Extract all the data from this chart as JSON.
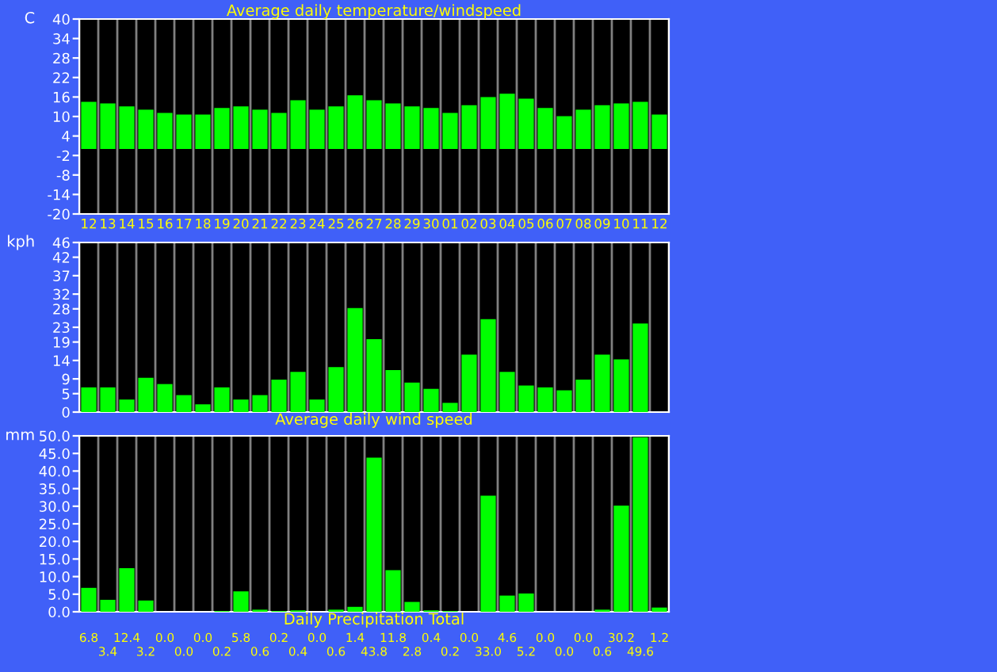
{
  "chart_data": [
    {
      "type": "bar",
      "title": "Average daily temperature/windspeed",
      "ylabel": "C",
      "categories": [
        "12",
        "13",
        "14",
        "15",
        "16",
        "17",
        "18",
        "19",
        "20",
        "21",
        "22",
        "23",
        "24",
        "25",
        "26",
        "27",
        "28",
        "29",
        "30",
        "01",
        "02",
        "03",
        "04",
        "05",
        "06",
        "07",
        "08",
        "09",
        "10",
        "11",
        "12"
      ],
      "series": [
        {
          "color": "#00ff00",
          "values": [
            14.5,
            14.0,
            13.1,
            12.1,
            11.1,
            10.6,
            10.6,
            12.6,
            13.1,
            12.1,
            11.1,
            15.0,
            12.1,
            13.1,
            16.5,
            15.0,
            14.0,
            13.1,
            12.6,
            11.1,
            13.5,
            16.0,
            17.0,
            15.5,
            12.6,
            10.1,
            12.1,
            13.5,
            14.0,
            14.5,
            10.6
          ]
        }
      ],
      "ylim": [
        -20,
        40
      ],
      "yticks": [
        -20,
        -14,
        -8,
        -2,
        4,
        10,
        16,
        22,
        28,
        34,
        40
      ],
      "grid": "x"
    },
    {
      "type": "bar",
      "ylabel": "kph",
      "xlabel": "Average daily wind speed",
      "categories": [
        "12",
        "13",
        "14",
        "15",
        "16",
        "17",
        "18",
        "19",
        "20",
        "21",
        "22",
        "23",
        "24",
        "25",
        "26",
        "27",
        "28",
        "29",
        "30",
        "01",
        "02",
        "03",
        "04",
        "05",
        "06",
        "07",
        "08",
        "09",
        "10",
        "11",
        "12"
      ],
      "series": [
        {
          "color": "#00ff00",
          "values": [
            6.7,
            6.7,
            3.4,
            9.3,
            7.6,
            4.6,
            2.1,
            6.7,
            3.4,
            4.6,
            8.8,
            10.9,
            3.4,
            12.2,
            28.2,
            19.8,
            11.4,
            8.0,
            6.3,
            2.5,
            15.6,
            25.2,
            10.9,
            7.2,
            6.7,
            5.9,
            8.8,
            15.6,
            14.3,
            24.0,
            null
          ]
        }
      ],
      "ylim": [
        0,
        46
      ],
      "yticks": [
        0,
        5,
        9,
        14,
        19,
        23,
        28,
        32,
        37,
        42,
        46
      ],
      "grid": "x",
      "tick_labels": "y"
    },
    {
      "type": "bar",
      "ylabel": "mm",
      "xlabel": "Daily Precipitation Total",
      "categories": [
        "12",
        "13",
        "14",
        "15",
        "16",
        "17",
        "18",
        "19",
        "20",
        "21",
        "22",
        "23",
        "24",
        "25",
        "26",
        "27",
        "28",
        "29",
        "30",
        "01",
        "02",
        "03",
        "04",
        "05",
        "06",
        "07",
        "08",
        "09",
        "10",
        "11",
        "12"
      ],
      "series": [
        {
          "color": "#00ff00",
          "values": [
            6.8,
            3.4,
            12.4,
            3.2,
            0.0,
            0.0,
            0.0,
            0.2,
            5.8,
            0.6,
            0.2,
            0.4,
            0.0,
            0.6,
            1.4,
            43.8,
            11.8,
            2.8,
            0.4,
            0.2,
            0.0,
            33.0,
            4.6,
            5.2,
            0.0,
            0.0,
            0.0,
            0.6,
            30.2,
            49.6,
            1.2
          ],
          "value_labels": [
            "6.8",
            "3.4",
            "12.4",
            "3.2",
            "0.0",
            "0.0",
            "0.0",
            "0.2",
            "5.8",
            "0.6",
            "0.2",
            "0.4",
            "0.0",
            "0.6",
            "1.4",
            "43.8",
            "11.8",
            "2.8",
            "0.4",
            "0.2",
            "0.0",
            "33.0",
            "4.6",
            "5.2",
            "0.0",
            "0.0",
            "0.0",
            "0.6",
            "30.2",
            "49.6",
            "1.2"
          ]
        }
      ],
      "ylim": [
        0,
        50
      ],
      "yticks": [
        {
          "value": 0,
          "label": "0.0"
        },
        {
          "value": 5,
          "label": "5.0"
        },
        {
          "value": 10,
          "label": "10.0"
        },
        {
          "value": 15,
          "label": "15.0"
        },
        {
          "value": 20,
          "label": "20.0"
        },
        {
          "value": 25,
          "label": "25.0"
        },
        {
          "value": 30,
          "label": "30.0"
        },
        {
          "value": 35,
          "label": "35.0"
        },
        {
          "value": 40,
          "label": "40.0"
        },
        {
          "value": 45,
          "label": "45.0"
        },
        {
          "value": 50,
          "label": "50.0"
        }
      ],
      "grid": "x",
      "tick_labels": "y"
    }
  ]
}
